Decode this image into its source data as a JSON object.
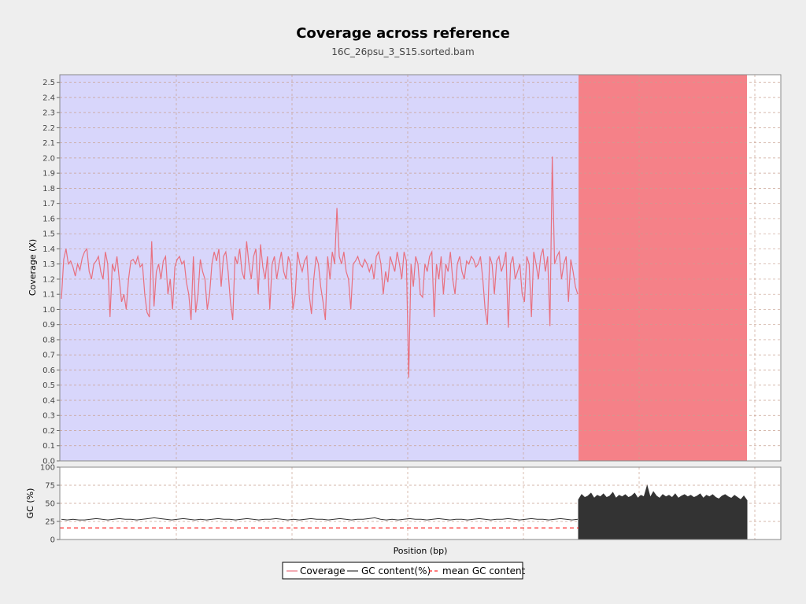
{
  "chart_data": [
    {
      "type": "line",
      "title": "Coverage across reference",
      "subtitle": "16C_26psu_3_S15.sorted.bam",
      "xlabel": "",
      "ylabel": "Coverage (X)",
      "ylim": [
        0,
        2.55
      ],
      "yticks": [
        "0.0",
        "0.1",
        "0.2",
        "0.3",
        "0.4",
        "0.5",
        "0.6",
        "0.7",
        "0.8",
        "0.9",
        "1.0",
        "1.1",
        "1.2",
        "1.3",
        "1.4",
        "1.5",
        "1.6",
        "1.7",
        "1.8",
        "1.9",
        "2.0",
        "2.1",
        "2.2",
        "2.3",
        "2.4",
        "2.5"
      ],
      "grid": true,
      "series": [
        {
          "name": "Coverage",
          "color": "#e8707f",
          "values": [
            1.07,
            1.33,
            1.4,
            1.3,
            1.32,
            1.28,
            1.22,
            1.3,
            1.26,
            1.34,
            1.38,
            1.4,
            1.25,
            1.2,
            1.3,
            1.32,
            1.35,
            1.25,
            1.2,
            1.38,
            1.3,
            0.95,
            1.3,
            1.25,
            1.35,
            1.2,
            1.05,
            1.1,
            1.0,
            1.2,
            1.32,
            1.33,
            1.3,
            1.35,
            1.28,
            1.3,
            1.1,
            0.98,
            0.95,
            1.45,
            1.02,
            1.25,
            1.3,
            1.2,
            1.32,
            1.35,
            1.1,
            1.2,
            1.0,
            1.28,
            1.33,
            1.35,
            1.3,
            1.32,
            1.18,
            1.1,
            0.93,
            1.35,
            0.98,
            1.1,
            1.33,
            1.25,
            1.2,
            1.0,
            1.1,
            1.3,
            1.38,
            1.32,
            1.4,
            1.15,
            1.35,
            1.38,
            1.25,
            1.05,
            0.93,
            1.35,
            1.3,
            1.4,
            1.25,
            1.2,
            1.45,
            1.3,
            1.2,
            1.35,
            1.4,
            1.1,
            1.43,
            1.28,
            1.2,
            1.35,
            1.0,
            1.3,
            1.35,
            1.2,
            1.3,
            1.38,
            1.25,
            1.2,
            1.35,
            1.3,
            1.0,
            1.1,
            1.38,
            1.3,
            1.25,
            1.32,
            1.35,
            1.1,
            0.97,
            1.2,
            1.35,
            1.3,
            1.15,
            1.05,
            0.93,
            1.35,
            1.2,
            1.38,
            1.3,
            1.67,
            1.35,
            1.3,
            1.38,
            1.25,
            1.2,
            1.0,
            1.3,
            1.32,
            1.35,
            1.3,
            1.28,
            1.33,
            1.3,
            1.25,
            1.3,
            1.2,
            1.35,
            1.38,
            1.3,
            1.1,
            1.25,
            1.18,
            1.35,
            1.3,
            1.25,
            1.38,
            1.3,
            1.2,
            1.38,
            1.32,
            0.55,
            1.3,
            1.15,
            1.35,
            1.3,
            1.1,
            1.08,
            1.3,
            1.25,
            1.35,
            1.38,
            0.95,
            1.3,
            1.2,
            1.35,
            1.1,
            1.3,
            1.25,
            1.38,
            1.2,
            1.1,
            1.3,
            1.35,
            1.25,
            1.2,
            1.32,
            1.3,
            1.35,
            1.33,
            1.28,
            1.3,
            1.35,
            1.2,
            1.0,
            0.9,
            1.35,
            1.3,
            1.1,
            1.32,
            1.35,
            1.25,
            1.3,
            1.38,
            0.88,
            1.3,
            1.35,
            1.2,
            1.25,
            1.3,
            1.1,
            1.05,
            1.35,
            1.3,
            0.95,
            1.38,
            1.3,
            1.2,
            1.35,
            1.4,
            1.25,
            1.35,
            0.89,
            2.01,
            1.3,
            1.35,
            1.38,
            1.2,
            1.3,
            1.35,
            1.05,
            1.33,
            1.25,
            1.15,
            1.1
          ]
        }
      ]
    },
    {
      "type": "line",
      "xlabel": "Position (bp)",
      "ylabel": "GC (%)",
      "ylim": [
        0,
        100
      ],
      "yticks": [
        "0",
        "25",
        "50",
        "75",
        "100"
      ],
      "grid": true,
      "series": [
        {
          "name": "GC content(%)",
          "color": "#333333",
          "values": [
            28,
            27,
            28,
            27,
            27,
            28,
            29,
            28,
            27,
            28,
            29,
            28,
            28,
            27,
            28,
            29,
            30,
            29,
            28,
            27,
            28,
            29,
            28,
            27,
            28,
            27,
            28,
            29,
            28,
            28,
            27,
            28,
            29,
            28,
            27,
            28,
            28,
            29,
            28,
            27,
            28,
            27,
            28,
            29,
            28,
            28,
            27,
            28,
            29,
            28,
            27,
            28,
            28,
            29,
            30,
            28,
            27,
            28,
            27,
            28,
            29,
            28,
            28,
            27,
            28,
            29,
            28,
            27,
            28,
            28,
            27,
            28,
            29,
            28,
            27,
            28,
            28,
            29,
            28,
            27,
            28,
            29,
            28,
            28,
            27,
            28,
            29,
            28,
            27,
            28
          ],
          "block": {
            "values": [
              55,
              62,
              58,
              60,
              64,
              57,
              61,
              59,
              63,
              58,
              60,
              65,
              57,
              61,
              59,
              62,
              58,
              60,
              64,
              57,
              61,
              59,
              74,
              58,
              66,
              60,
              57,
              62,
              59,
              61,
              58,
              63,
              57,
              60,
              62,
              59,
              61,
              58,
              60,
              63,
              57,
              61,
              59,
              62,
              58,
              56,
              60,
              62,
              59,
              57,
              61,
              58,
              55,
              60,
              54
            ]
          }
        },
        {
          "name": "mean GC content",
          "color": "#ff2a2a",
          "value": 16
        }
      ]
    }
  ],
  "legend": {
    "placement": "bottom-center",
    "items": [
      {
        "name": "Coverage",
        "color": "#e8707f",
        "style": "solid"
      },
      {
        "name": "GC content(%)",
        "color": "#333333",
        "style": "solid"
      },
      {
        "name": "mean GC content",
        "color": "#ff2a2a",
        "style": "dashed"
      }
    ]
  },
  "colors": {
    "background": "#eeeeee",
    "plot_blue_region": "#d8d6fb",
    "plot_red_region": "#f58188",
    "grid": "#c8a090"
  }
}
